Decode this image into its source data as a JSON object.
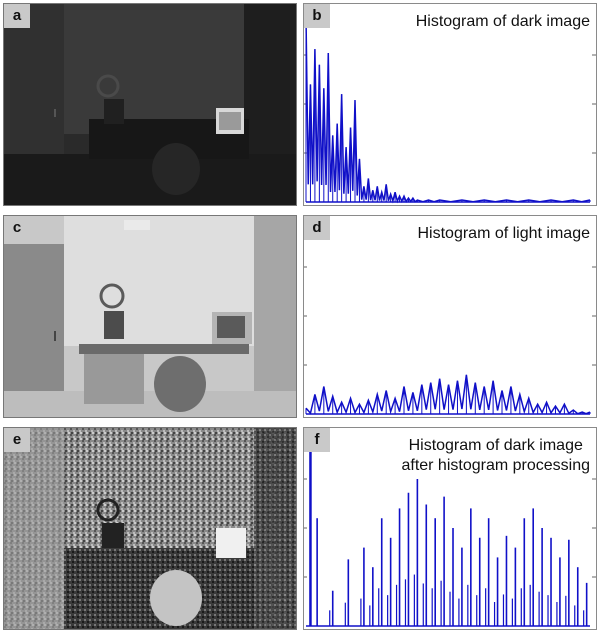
{
  "panels": [
    {
      "letter": "a",
      "kind": "photo",
      "description_tone": "dark"
    },
    {
      "letter": "b",
      "kind": "histogram",
      "title_line1": "Histogram of dark image",
      "title_line2": ""
    },
    {
      "letter": "c",
      "kind": "photo",
      "description_tone": "light"
    },
    {
      "letter": "d",
      "kind": "histogram",
      "title_line1": "Histogram of light image",
      "title_line2": ""
    },
    {
      "letter": "e",
      "kind": "photo",
      "description_tone": "equalized"
    },
    {
      "letter": "f",
      "kind": "histogram",
      "title_line1": "Histogram of dark image",
      "title_line2": "after histogram processing"
    }
  ],
  "colors": {
    "histogram_line": "#1010c8"
  },
  "chart_data": [
    {
      "type": "line",
      "title": "Histogram of dark image",
      "xlim": [
        0,
        255
      ],
      "ylim": [
        0,
        100
      ],
      "x": [
        0,
        4,
        8,
        12,
        16,
        20,
        24,
        28,
        32,
        36,
        40,
        44,
        48,
        52,
        56,
        60,
        64,
        68,
        72,
        76,
        80,
        84,
        88,
        92,
        96,
        100,
        110,
        120,
        140,
        160,
        180,
        200,
        220,
        240,
        255
      ],
      "series": [
        {
          "values": [
            95,
            60,
            78,
            70,
            58,
            76,
            34,
            40,
            55,
            28,
            38,
            52,
            22,
            8,
            12,
            6,
            8,
            5,
            9,
            4,
            5,
            3,
            3,
            2,
            2,
            1,
            1,
            1,
            1,
            1,
            1,
            1,
            1,
            1,
            1
          ]
        }
      ]
    },
    {
      "type": "line",
      "title": "Histogram of light image",
      "xlim": [
        0,
        255
      ],
      "ylim": [
        0,
        100
      ],
      "x": [
        0,
        8,
        16,
        24,
        32,
        40,
        48,
        56,
        64,
        72,
        80,
        88,
        96,
        104,
        112,
        120,
        128,
        136,
        144,
        152,
        160,
        168,
        176,
        184,
        192,
        200,
        208,
        216,
        224,
        232,
        240,
        248,
        255
      ],
      "series": [
        {
          "values": [
            3,
            10,
            14,
            9,
            6,
            8,
            5,
            7,
            10,
            12,
            8,
            14,
            11,
            15,
            16,
            18,
            15,
            17,
            20,
            16,
            14,
            17,
            12,
            14,
            10,
            8,
            5,
            6,
            4,
            5,
            2,
            1,
            1
          ]
        }
      ]
    },
    {
      "type": "bar",
      "title": "Histogram of dark image after histogram processing",
      "xlim": [
        0,
        255
      ],
      "ylim": [
        0,
        100
      ],
      "x": [
        4,
        10,
        24,
        38,
        52,
        60,
        68,
        76,
        84,
        92,
        100,
        108,
        116,
        124,
        132,
        140,
        148,
        156,
        164,
        172,
        180,
        188,
        196,
        204,
        212,
        220,
        228,
        236,
        244,
        252
      ],
      "series": [
        {
          "values": [
            100,
            55,
            18,
            34,
            40,
            30,
            55,
            45,
            60,
            68,
            75,
            62,
            55,
            66,
            50,
            40,
            60,
            45,
            55,
            35,
            46,
            40,
            55,
            60,
            50,
            45,
            35,
            44,
            30,
            22
          ]
        }
      ]
    }
  ]
}
